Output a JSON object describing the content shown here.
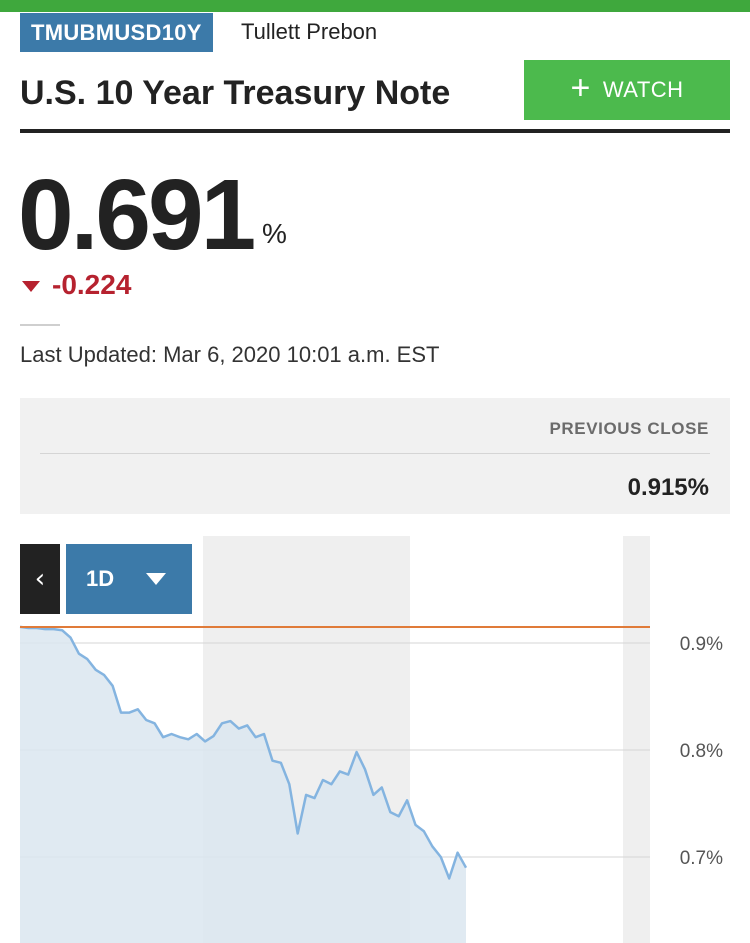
{
  "header": {
    "symbol": "TMUBMUSD10Y",
    "source": "Tullett Prebon",
    "title": "U.S. 10 Year Treasury Note",
    "watch_label": "WATCH",
    "watch_icon": "plus-icon"
  },
  "quote": {
    "price": "0.691",
    "unit": "%",
    "change": "-0.224",
    "change_direction_icon": "down-arrow-icon",
    "last_updated": "Last Updated: Mar 6, 2020 10:01 a.m. EST"
  },
  "previous_close": {
    "label": "PREVIOUS CLOSE",
    "value": "0.915%"
  },
  "chart_controls": {
    "back_icon": "chevron-left-icon",
    "back_glyph": "‹",
    "range_label": "1D",
    "range_icon": "caret-down-icon"
  },
  "colors": {
    "brand_green": "#3fa83d",
    "watch_green": "#4cba4d",
    "badge_blue": "#3c7aa9",
    "down_red": "#b6222f",
    "line_blue": "#84b4e0",
    "area_fill": "#dbe6f0",
    "previous_close_line": "#e07b39"
  },
  "chart_data": {
    "type": "area",
    "title": "",
    "xlabel": "",
    "ylabel": "",
    "ylim": [
      0.64,
      0.93
    ],
    "y_ticks": [
      "0.9%",
      "0.8%",
      "0.7%"
    ],
    "y_tick_values": [
      0.9,
      0.8,
      0.7
    ],
    "grid": true,
    "reference_line": {
      "label": "previous close",
      "value": 0.915
    },
    "series": [
      {
        "values": [
          0.915,
          0.914,
          0.914,
          0.913,
          0.913,
          0.912,
          0.905,
          0.89,
          0.885,
          0.875,
          0.87,
          0.86,
          0.835,
          0.835,
          0.838,
          0.828,
          0.825,
          0.812,
          0.815,
          0.812,
          0.81,
          0.815,
          0.808,
          0.813,
          0.825,
          0.827,
          0.82,
          0.823,
          0.812,
          0.815,
          0.79,
          0.788,
          0.768,
          0.722,
          0.758,
          0.755,
          0.772,
          0.768,
          0.78,
          0.777,
          0.798,
          0.782,
          0.758,
          0.765,
          0.742,
          0.738,
          0.753,
          0.73,
          0.724,
          0.71,
          0.7,
          0.68,
          0.704,
          0.69
        ]
      }
    ]
  }
}
